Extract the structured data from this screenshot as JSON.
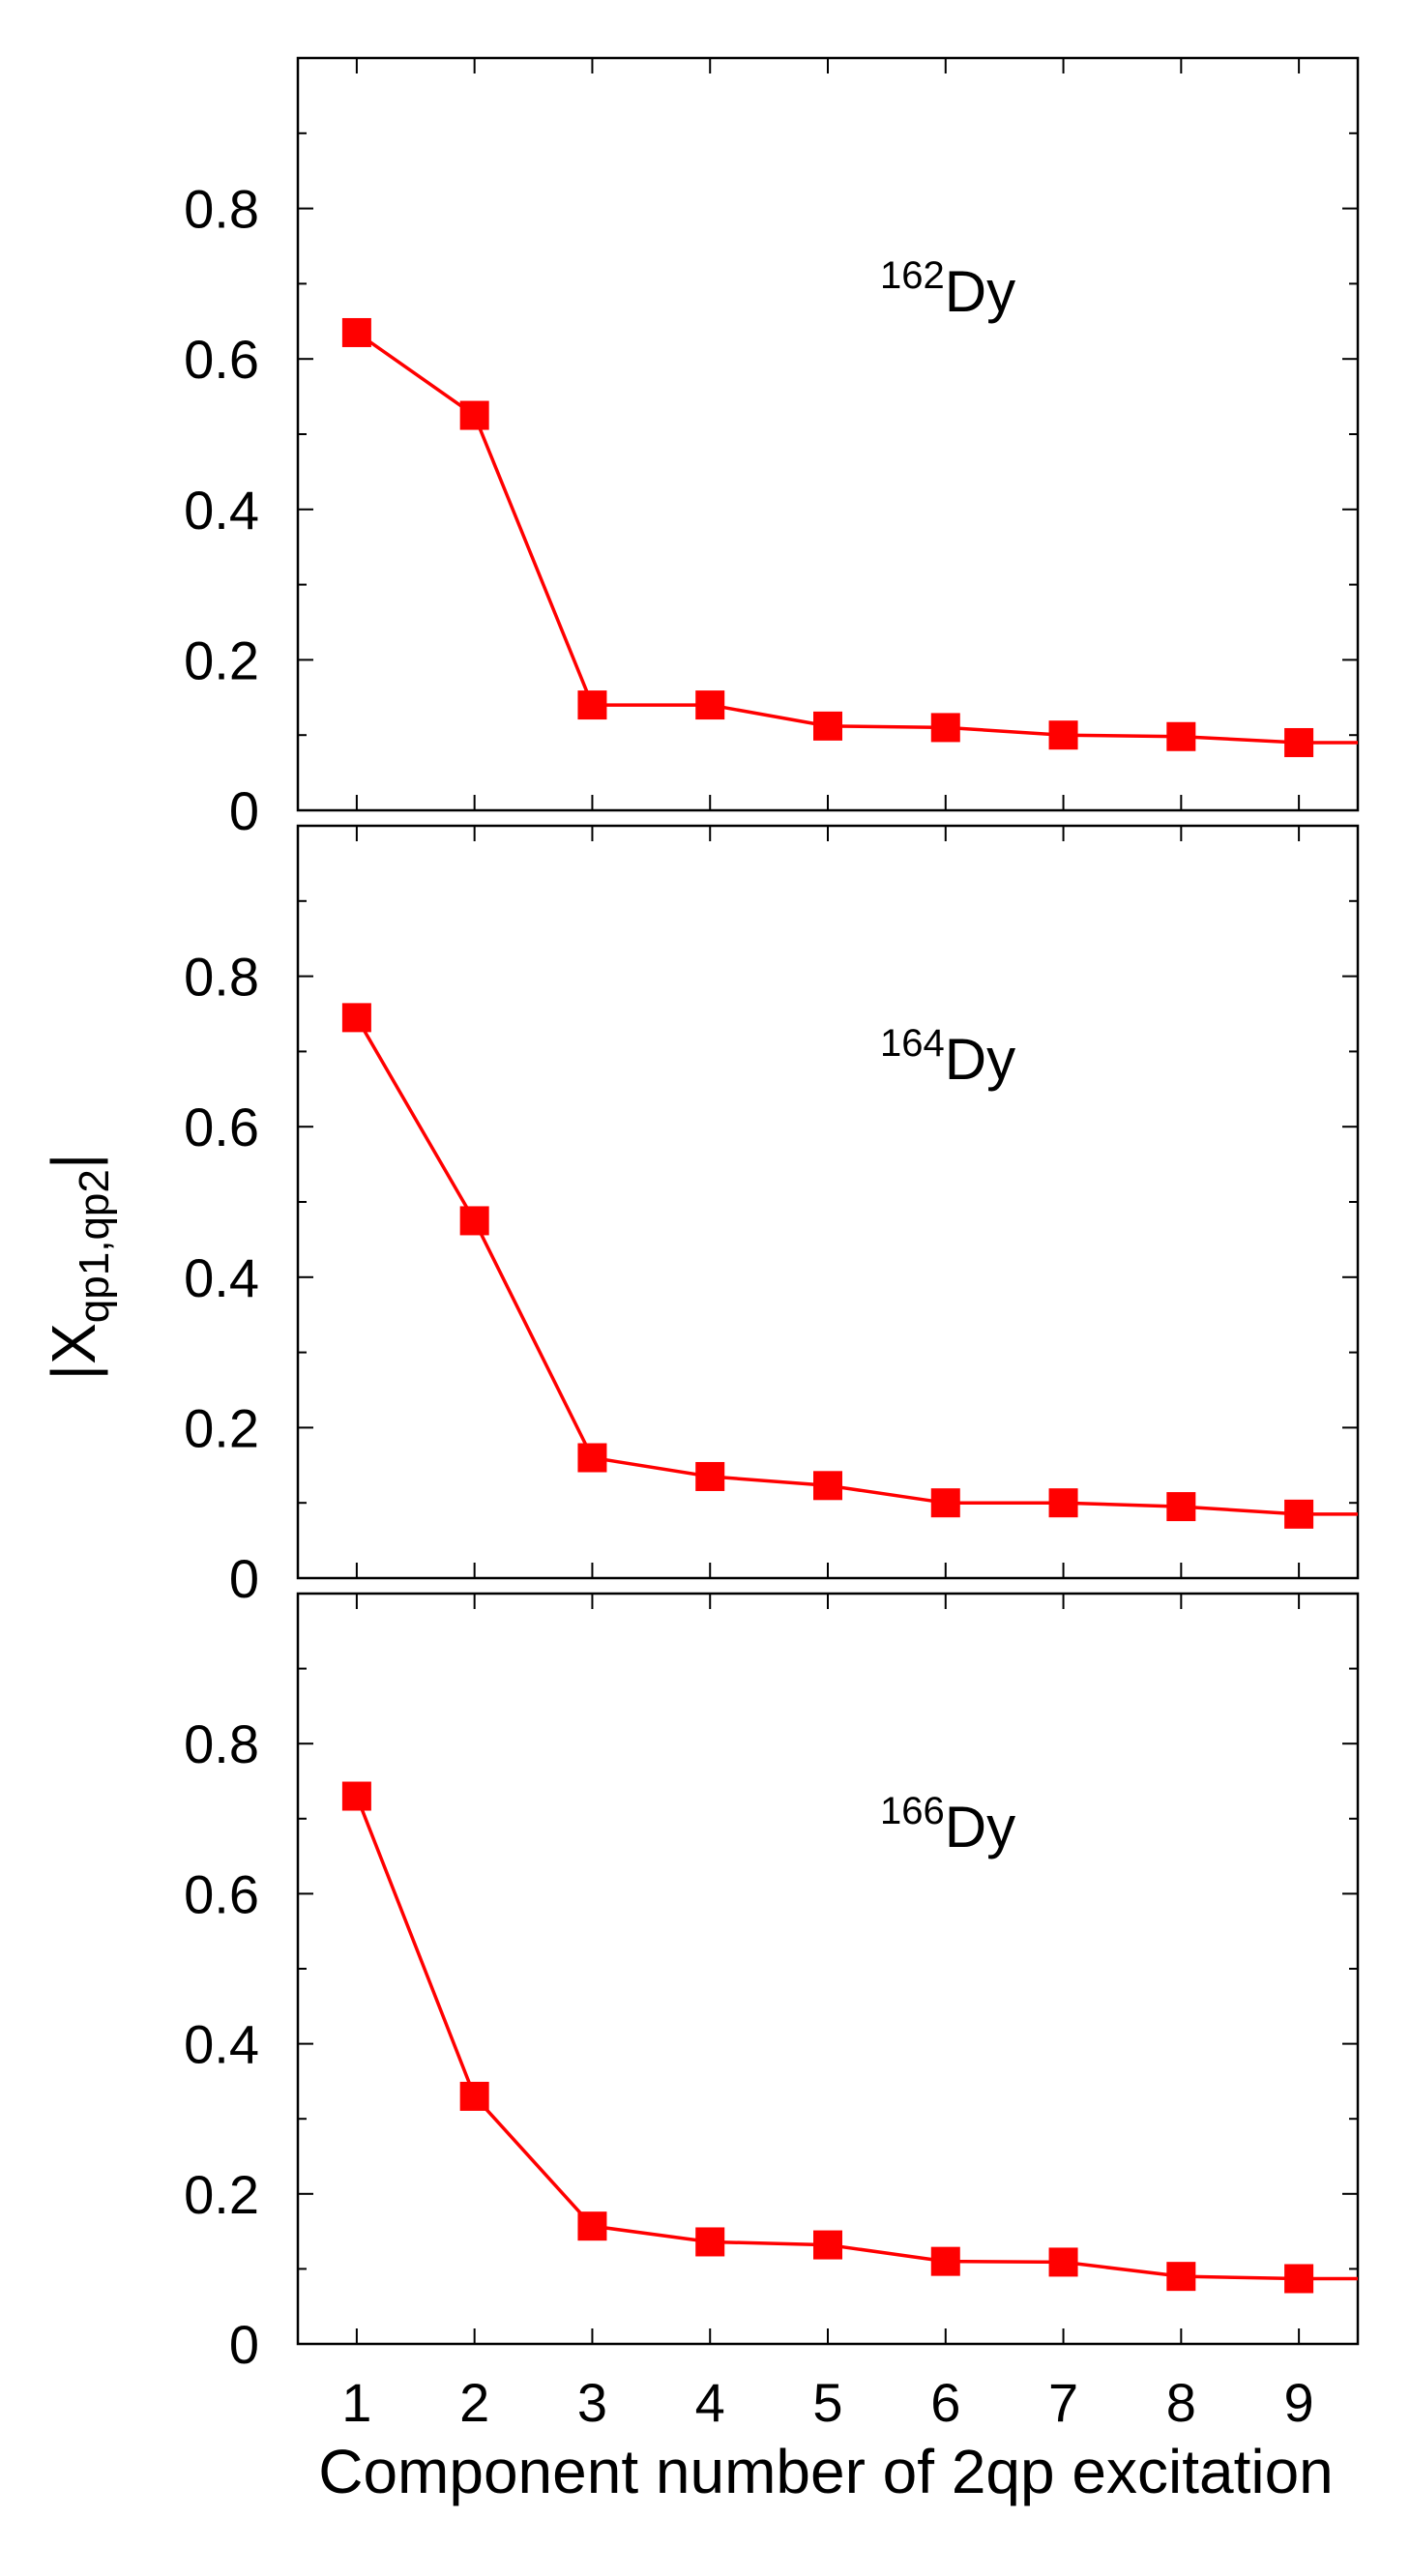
{
  "chart_data": [
    {
      "type": "line",
      "nucleus": {
        "mass": "162",
        "symbol": "Dy"
      },
      "x": [
        1,
        2,
        3,
        4,
        5,
        6,
        7,
        8,
        9
      ],
      "series": [
        {
          "values": [
            0.635,
            0.525,
            0.14,
            0.14,
            0.112,
            0.11,
            0.1,
            0.098,
            0.09
          ],
          "color": "#ff0000",
          "marker": "square"
        }
      ],
      "xlim": [
        0.5,
        9.5
      ],
      "ylim": [
        0,
        1.0
      ],
      "y_ticks": [
        "0",
        "0.2",
        "0.4",
        "0.6",
        "0.8"
      ],
      "line_extends_to": {
        "x": 9.5,
        "y": 0.09
      }
    },
    {
      "type": "line",
      "nucleus": {
        "mass": "164",
        "symbol": "Dy"
      },
      "x": [
        1,
        2,
        3,
        4,
        5,
        6,
        7,
        8,
        9
      ],
      "series": [
        {
          "values": [
            0.745,
            0.475,
            0.16,
            0.135,
            0.123,
            0.1,
            0.1,
            0.095,
            0.085
          ],
          "color": "#ff0000",
          "marker": "square"
        }
      ],
      "xlim": [
        0.5,
        9.5
      ],
      "ylim": [
        0,
        1.0
      ],
      "y_ticks": [
        "0",
        "0.2",
        "0.4",
        "0.6",
        "0.8"
      ],
      "line_extends_to": {
        "x": 9.5,
        "y": 0.085
      }
    },
    {
      "type": "line",
      "nucleus": {
        "mass": "166",
        "symbol": "Dy"
      },
      "x": [
        1,
        2,
        3,
        4,
        5,
        6,
        7,
        8,
        9
      ],
      "series": [
        {
          "values": [
            0.73,
            0.33,
            0.157,
            0.136,
            0.132,
            0.11,
            0.109,
            0.09,
            0.087
          ],
          "color": "#ff0000",
          "marker": "square"
        }
      ],
      "xlim": [
        0.5,
        9.5
      ],
      "ylim": [
        0,
        1.0
      ],
      "y_ticks": [
        "0",
        "0.2",
        "0.4",
        "0.6",
        "0.8"
      ],
      "x_ticks": [
        "1",
        "2",
        "3",
        "4",
        "5",
        "6",
        "7",
        "8",
        "9"
      ],
      "line_extends_to": {
        "x": 9.5,
        "y": 0.087
      }
    }
  ],
  "ylabel": {
    "prefix": "|X",
    "subscript": "qp1,qp2",
    "suffix": "|"
  },
  "xlabel": "Component number of 2qp excitation"
}
